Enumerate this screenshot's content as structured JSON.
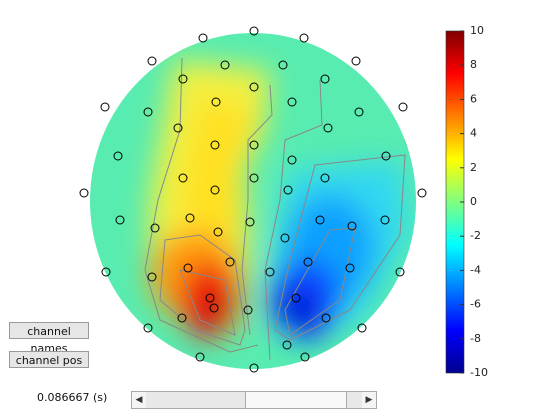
{
  "buttons": [
    "channel names",
    "channel pos"
  ],
  "time_label": "0.086667 (s)",
  "colorbar": {
    "lim": [
      -10,
      10
    ],
    "ticks": [
      -10,
      -8,
      -6,
      -4,
      -2,
      0,
      2,
      4,
      6,
      8,
      10
    ]
  }
}
